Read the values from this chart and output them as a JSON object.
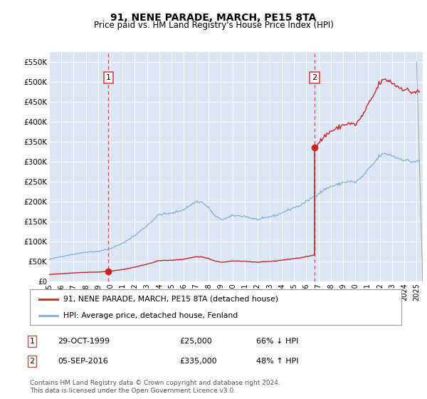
{
  "title": "91, NENE PARADE, MARCH, PE15 8TA",
  "subtitle": "Price paid vs. HM Land Registry's House Price Index (HPI)",
  "background_color": "#dce6f5",
  "plot_bg_color": "#dce6f5",
  "ylim": [
    0,
    575000
  ],
  "yticks": [
    0,
    50000,
    100000,
    150000,
    200000,
    250000,
    300000,
    350000,
    400000,
    450000,
    500000,
    550000
  ],
  "ytick_labels": [
    "£0",
    "£50K",
    "£100K",
    "£150K",
    "£200K",
    "£250K",
    "£300K",
    "£350K",
    "£400K",
    "£450K",
    "£500K",
    "£550K"
  ],
  "xlim_start": 1995.0,
  "xlim_end": 2025.5,
  "hpi_color": "#7bafd4",
  "price_color": "#cc2222",
  "dashed_line_color": "#dd4444",
  "transaction1_year": 1999.83,
  "transaction1_price": 25000,
  "transaction2_year": 2016.67,
  "transaction2_price": 335000,
  "legend_label1": "91, NENE PARADE, MARCH, PE15 8TA (detached house)",
  "legend_label2": "HPI: Average price, detached house, Fenland",
  "table_row1_date": "29-OCT-1999",
  "table_row1_price": "£25,000",
  "table_row1_hpi": "66% ↓ HPI",
  "table_row2_date": "05-SEP-2016",
  "table_row2_price": "£335,000",
  "table_row2_hpi": "48% ↑ HPI",
  "footer": "Contains HM Land Registry data © Crown copyright and database right 2024.\nThis data is licensed under the Open Government Licence v3.0."
}
